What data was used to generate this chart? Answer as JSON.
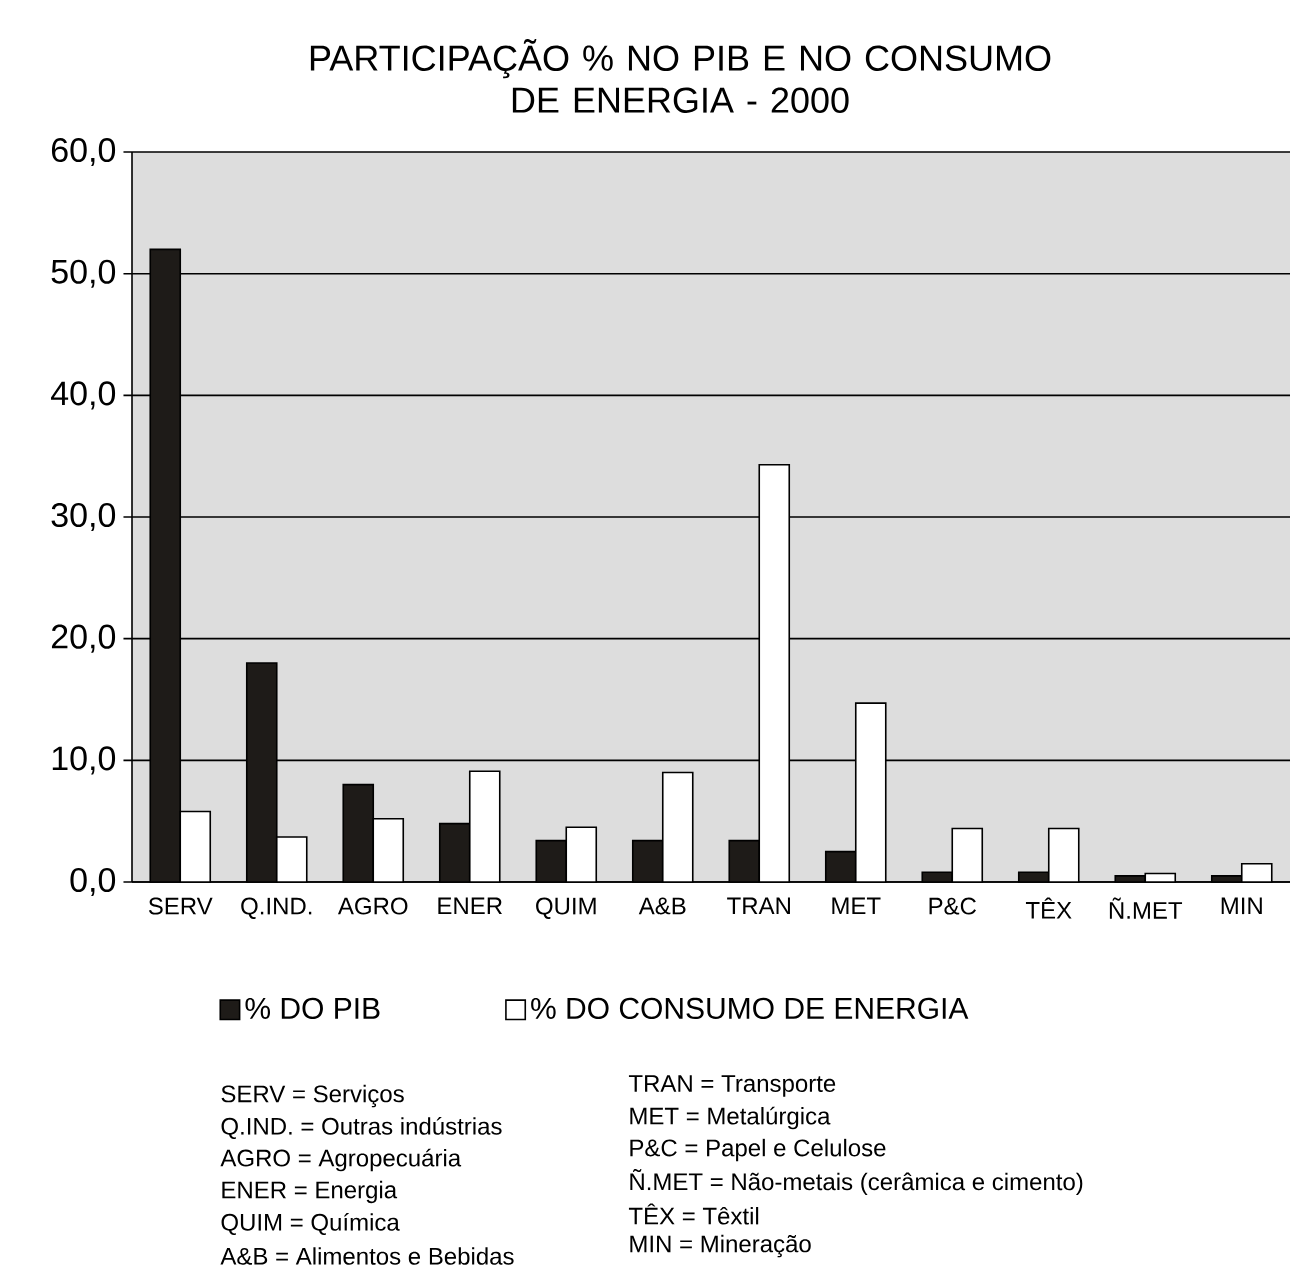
{
  "chart_data": {
    "type": "bar",
    "title": "PARTICIPAÇÃO % NO PIB E NO CONSUMO\nDE ENERGIA - 2000",
    "categories": [
      "SERV",
      "Q.IND.",
      "AGRO",
      "ENER",
      "QUIM",
      "A&B",
      "TRAN",
      "MET",
      "P&C",
      "TÊX",
      "Ñ.MET",
      "MIN"
    ],
    "series": [
      {
        "name": "% DO PIB",
        "color": "#1e1b18",
        "values": [
          52.0,
          18.0,
          8.0,
          4.8,
          3.4,
          3.4,
          3.4,
          2.5,
          0.8,
          0.8,
          0.5,
          0.5
        ]
      },
      {
        "name": "% DO CONSUMO DE ENERGIA",
        "color": "#ffffff",
        "values": [
          5.8,
          3.7,
          5.2,
          9.1,
          4.5,
          9.0,
          34.3,
          14.7,
          4.4,
          4.4,
          0.7,
          1.5
        ]
      }
    ],
    "ylim": [
      0,
      60
    ],
    "yticks": [
      {
        "value": 0,
        "label": "0,0"
      },
      {
        "value": 10,
        "label": "10,0"
      },
      {
        "value": 20,
        "label": "20,0"
      },
      {
        "value": 30,
        "label": "30,0"
      },
      {
        "value": 40,
        "label": "40,0"
      },
      {
        "value": 50,
        "label": "50,0"
      },
      {
        "value": 60,
        "label": "60,0"
      }
    ],
    "grid": "y",
    "legend": "bottom",
    "annotations": [
      "SERV = Serviços",
      "Q.IND. = Outras indústrias",
      "AGRO = Agropecuária",
      "ENER = Energia",
      "QUIM = Química",
      "A&B = Alimentos e Bebidas",
      "TRAN = Transporte",
      "MET = Metalúrgica",
      "P&C = Papel e Celulose",
      "Ñ.MET = Não-metais (cerâmica e cimento)",
      "TÊX = Têxtil",
      "MIN = Mineração"
    ]
  }
}
